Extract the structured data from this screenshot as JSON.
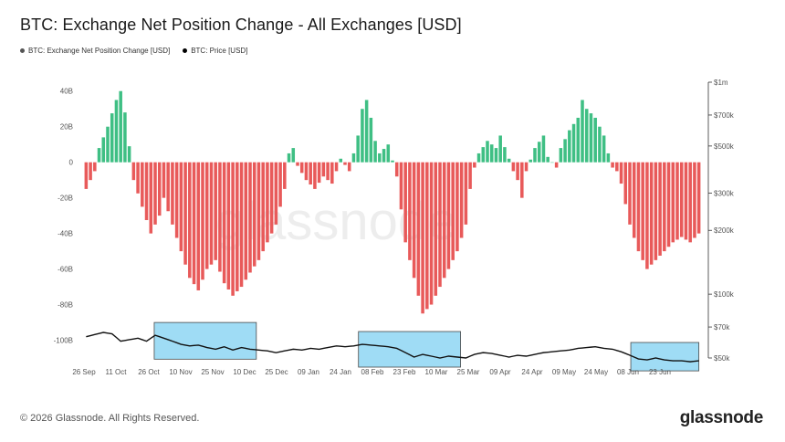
{
  "title": "BTC: Exchange Net Position Change - All Exchanges [USD]",
  "legend": [
    {
      "label": "BTC: Exchange Net Position Change [USD]",
      "color": "#555555"
    },
    {
      "label": "BTC: Price [USD]",
      "color": "#000000"
    }
  ],
  "watermark": "glassnode",
  "footer": {
    "copyright": "© 2026 Glassnode. All Rights Reserved.",
    "brand": "glassnode"
  },
  "colors": {
    "positive": "#3fbf84",
    "negative": "#e85a5a",
    "price": "#111111",
    "highlight": "#7fd0f2"
  },
  "chart_data": {
    "type": "bar",
    "x_ticks": [
      "26 Sep",
      "11 Oct",
      "26 Oct",
      "10 Nov",
      "25 Nov",
      "10 Dec",
      "25 Dec",
      "09 Jan",
      "24 Jan",
      "08 Feb",
      "23 Feb",
      "10 Mar",
      "25 Mar",
      "09 Apr",
      "24 Apr",
      "09 May",
      "24 May",
      "08 Jun",
      "23 Jun"
    ],
    "y_left": {
      "ticks": [
        40,
        20,
        0,
        -20,
        -40,
        -60,
        -80,
        -100
      ],
      "labels": [
        "40B",
        "20B",
        "0",
        "-20B",
        "-40B",
        "-60B",
        "-80B",
        "-100B"
      ],
      "range": [
        -110,
        45
      ]
    },
    "y_right": {
      "log": true,
      "ticks": [
        1000000,
        700000,
        500000,
        300000,
        200000,
        100000,
        70000,
        50000
      ],
      "labels": [
        "$1m",
        "$700k",
        "$500k",
        "$300k",
        "$200k",
        "$100k",
        "$70k",
        "$50k"
      ],
      "range": [
        50000,
        1000000
      ]
    },
    "net_position_keypoints": [
      [
        0,
        -15
      ],
      [
        2,
        -5
      ],
      [
        3,
        8
      ],
      [
        5,
        20
      ],
      [
        7,
        35
      ],
      [
        8,
        40
      ],
      [
        9,
        28
      ],
      [
        11,
        -10
      ],
      [
        13,
        -25
      ],
      [
        15,
        -40
      ],
      [
        17,
        -30
      ],
      [
        18,
        -20
      ],
      [
        20,
        -35
      ],
      [
        22,
        -50
      ],
      [
        24,
        -65
      ],
      [
        26,
        -72
      ],
      [
        28,
        -60
      ],
      [
        30,
        -55
      ],
      [
        32,
        -68
      ],
      [
        34,
        -75
      ],
      [
        36,
        -70
      ],
      [
        38,
        -62
      ],
      [
        40,
        -55
      ],
      [
        42,
        -45
      ],
      [
        44,
        -35
      ],
      [
        46,
        -15
      ],
      [
        47,
        5
      ],
      [
        48,
        8
      ],
      [
        49,
        -2
      ],
      [
        51,
        -10
      ],
      [
        53,
        -15
      ],
      [
        55,
        -8
      ],
      [
        57,
        -12
      ],
      [
        59,
        2
      ],
      [
        61,
        -5
      ],
      [
        62,
        5
      ],
      [
        63,
        15
      ],
      [
        64,
        30
      ],
      [
        65,
        35
      ],
      [
        66,
        25
      ],
      [
        67,
        12
      ],
      [
        68,
        5
      ],
      [
        70,
        10
      ],
      [
        72,
        -8
      ],
      [
        74,
        -45
      ],
      [
        76,
        -65
      ],
      [
        78,
        -85
      ],
      [
        80,
        -80
      ],
      [
        82,
        -70
      ],
      [
        84,
        -60
      ],
      [
        86,
        -50
      ],
      [
        88,
        -35
      ],
      [
        89,
        -15
      ],
      [
        90,
        -3
      ],
      [
        91,
        5
      ],
      [
        93,
        12
      ],
      [
        95,
        8
      ],
      [
        96,
        15
      ],
      [
        98,
        2
      ],
      [
        99,
        -5
      ],
      [
        100,
        -10
      ],
      [
        101,
        -20
      ],
      [
        102,
        -5
      ],
      [
        104,
        8
      ],
      [
        106,
        15
      ],
      [
        107,
        3
      ],
      [
        109,
        -3
      ],
      [
        110,
        8
      ],
      [
        112,
        18
      ],
      [
        114,
        25
      ],
      [
        115,
        35
      ],
      [
        116,
        30
      ],
      [
        118,
        25
      ],
      [
        120,
        15
      ],
      [
        121,
        5
      ],
      [
        122,
        -3
      ],
      [
        123,
        -5
      ],
      [
        124,
        -12
      ],
      [
        126,
        -35
      ],
      [
        128,
        -50
      ],
      [
        130,
        -60
      ],
      [
        132,
        -55
      ],
      [
        134,
        -50
      ],
      [
        136,
        -45
      ],
      [
        138,
        -42
      ],
      [
        140,
        -45
      ],
      [
        142,
        -40
      ]
    ],
    "price_keypoints": [
      [
        0,
        63000
      ],
      [
        4,
        66000
      ],
      [
        6,
        65000
      ],
      [
        8,
        60000
      ],
      [
        10,
        61000
      ],
      [
        12,
        62000
      ],
      [
        14,
        60000
      ],
      [
        16,
        64000
      ],
      [
        18,
        62000
      ],
      [
        20,
        60000
      ],
      [
        22,
        58000
      ],
      [
        24,
        57000
      ],
      [
        26,
        57500
      ],
      [
        28,
        56000
      ],
      [
        30,
        55000
      ],
      [
        32,
        56500
      ],
      [
        34,
        54500
      ],
      [
        36,
        56000
      ],
      [
        38,
        55000
      ],
      [
        40,
        54500
      ],
      [
        42,
        54000
      ],
      [
        44,
        53000
      ],
      [
        46,
        54000
      ],
      [
        48,
        55000
      ],
      [
        50,
        54500
      ],
      [
        52,
        55500
      ],
      [
        54,
        55000
      ],
      [
        56,
        56000
      ],
      [
        58,
        57000
      ],
      [
        60,
        56500
      ],
      [
        62,
        57000
      ],
      [
        64,
        58000
      ],
      [
        66,
        57500
      ],
      [
        68,
        57000
      ],
      [
        70,
        56500
      ],
      [
        72,
        55500
      ],
      [
        74,
        53000
      ],
      [
        76,
        50500
      ],
      [
        78,
        52000
      ],
      [
        80,
        51000
      ],
      [
        82,
        50000
      ],
      [
        84,
        51000
      ],
      [
        86,
        50500
      ],
      [
        88,
        50000
      ],
      [
        90,
        52000
      ],
      [
        92,
        53000
      ],
      [
        94,
        52500
      ],
      [
        96,
        51500
      ],
      [
        98,
        50500
      ],
      [
        100,
        51500
      ],
      [
        102,
        51000
      ],
      [
        104,
        52000
      ],
      [
        106,
        53000
      ],
      [
        108,
        53500
      ],
      [
        110,
        54000
      ],
      [
        112,
        54500
      ],
      [
        114,
        55500
      ],
      [
        116,
        56000
      ],
      [
        118,
        56500
      ],
      [
        120,
        55500
      ],
      [
        122,
        55000
      ],
      [
        124,
        53500
      ],
      [
        126,
        51500
      ],
      [
        128,
        49500
      ],
      [
        130,
        49000
      ],
      [
        132,
        50000
      ],
      [
        134,
        49000
      ],
      [
        136,
        48500
      ],
      [
        138,
        48500
      ],
      [
        140,
        48000
      ],
      [
        142,
        48500
      ]
    ],
    "highlight_boxes": [
      {
        "start": "26 Oct",
        "end": "10 Dec"
      },
      {
        "start": "24 Jan",
        "end": "10 Mar"
      },
      {
        "start": "24 May",
        "end": "23 Jun"
      }
    ]
  }
}
